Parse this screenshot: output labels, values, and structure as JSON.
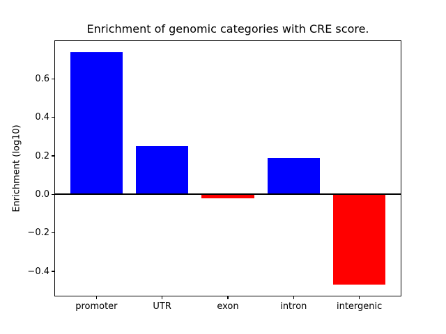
{
  "chart_data": {
    "type": "bar",
    "title": "Enrichment of genomic categories with CRE score.",
    "xlabel": "",
    "ylabel": "Enrichment (log10)",
    "categories": [
      "promoter",
      "UTR",
      "exon",
      "intron",
      "intergenic"
    ],
    "values": [
      0.74,
      0.25,
      -0.02,
      0.19,
      -0.47
    ],
    "bar_colors": [
      "#0000ff",
      "#0000ff",
      "#ff0000",
      "#0000ff",
      "#ff0000"
    ],
    "positive_color": "#0000ff",
    "negative_color": "#ff0000",
    "yticks": [
      0.6,
      0.4,
      0.2,
      0.0,
      -0.2,
      -0.4
    ],
    "ylim": [
      -0.53,
      0.8
    ],
    "xlim": [
      -0.64,
      4.64
    ],
    "bar_width": 0.8,
    "grid": false,
    "legend": null,
    "zero_line": true,
    "background": "#ffffff",
    "text_color": "#000000"
  }
}
